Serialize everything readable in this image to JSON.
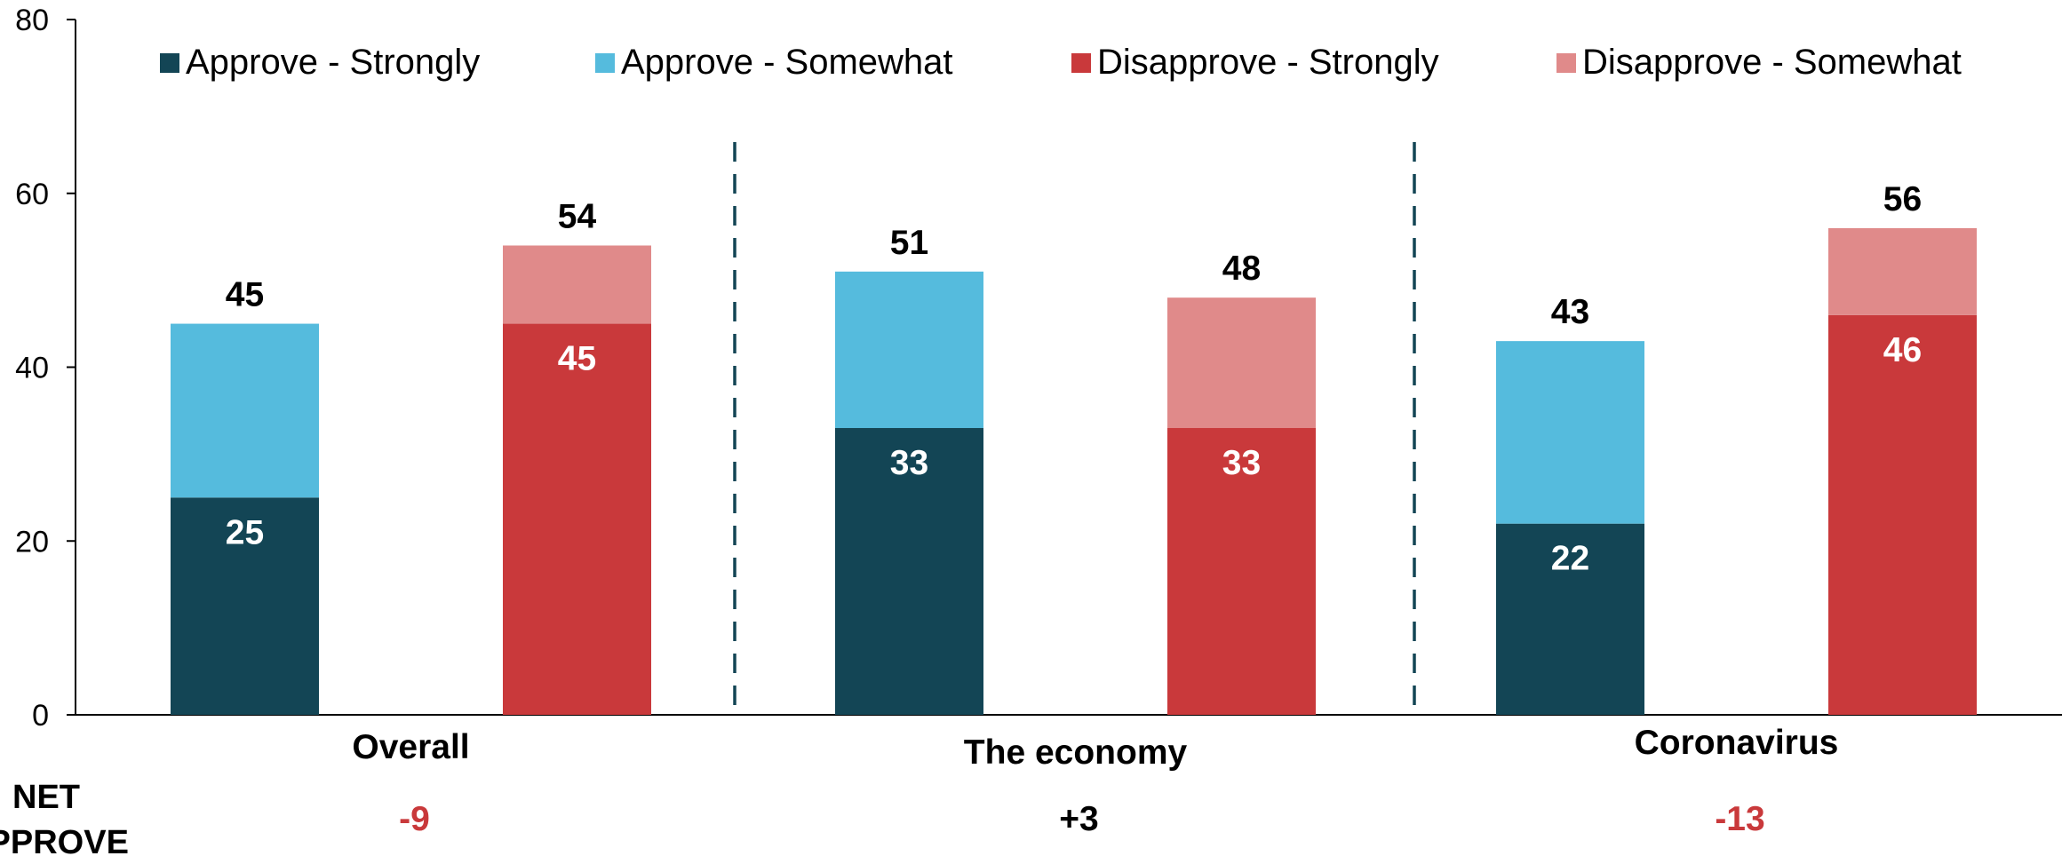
{
  "chart_data": {
    "type": "bar",
    "stacked": true,
    "ylim": [
      0,
      80
    ],
    "yticks": [
      0,
      20,
      40,
      60,
      80
    ],
    "grid": false,
    "legend_position": "top",
    "categories": [
      "Overall",
      "The economy",
      "Coronavirus"
    ],
    "series": [
      {
        "name": "Approve - Strongly",
        "color": "#134555",
        "group": "approve",
        "values": [
          25,
          33,
          22
        ]
      },
      {
        "name": "Approve - Somewhat",
        "color": "#55BBDD",
        "group": "approve",
        "values": [
          20,
          18,
          21
        ]
      },
      {
        "name": "Disapprove - Strongly",
        "color": "#C9393B",
        "group": "disapprove",
        "values": [
          45,
          33,
          46
        ]
      },
      {
        "name": "Disapprove - Somewhat",
        "color": "#E08A8A",
        "group": "disapprove",
        "values": [
          9,
          15,
          10
        ]
      }
    ],
    "segment_labels": {
      "approve": [
        "25",
        "33",
        "22"
      ],
      "disapprove": [
        "45",
        "33",
        "46"
      ]
    },
    "totals": {
      "approve": [
        "45",
        "51",
        "43"
      ],
      "disapprove": [
        "54",
        "48",
        "56"
      ]
    },
    "net_approve": {
      "title_lines": [
        "NET",
        "APPROVE"
      ],
      "values": [
        "-9",
        "+3",
        "-13"
      ],
      "colors": [
        "#C9393B",
        "#000000",
        "#C9393B"
      ]
    },
    "divider_color": "#134555"
  }
}
